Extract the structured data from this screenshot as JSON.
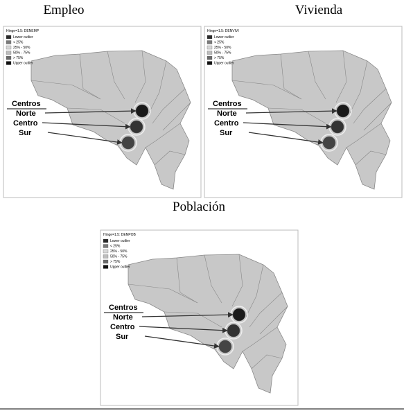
{
  "panels": [
    {
      "title": "Empleo",
      "legend_title": "Hinge=1.5: DENEMP",
      "legend_items": [
        "Lower outlier",
        "< 25%",
        "25% - 50%",
        "50% - 75%",
        "> 75%",
        "Upper outlier"
      ],
      "annotations": [
        "Centros",
        "Norte",
        "Centro",
        "Sur"
      ]
    },
    {
      "title": "Vivienda",
      "legend_title": "Hinge=1.5: DENVIVI",
      "legend_items": [
        "Lower outlier",
        "< 25%",
        "25% - 50%",
        "50% - 75%",
        "> 75%",
        "Upper outlier"
      ],
      "annotations": [
        "Centros",
        "Norte",
        "Centro",
        "Sur"
      ]
    },
    {
      "title": "Población",
      "legend_title": "Hinge=1.5: DENPOB",
      "legend_items": [
        "Lower outlier",
        "< 25%",
        "25% - 50%",
        "50% - 75%",
        "> 75%",
        "Upper outlier"
      ],
      "annotations": [
        "Centros",
        "Norte",
        "Centro",
        "Sur"
      ]
    }
  ]
}
